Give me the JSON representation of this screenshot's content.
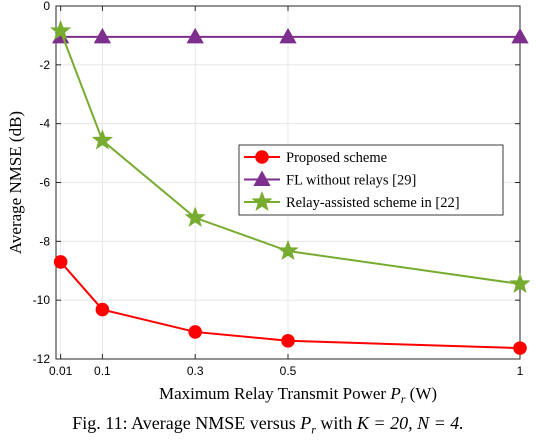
{
  "chart_data": {
    "type": "line",
    "title": "",
    "xlabel": "Maximum Relay Transmit Power P_r (W)",
    "ylabel": "Average NMSE (dB)",
    "x": [
      0.01,
      0.1,
      0.3,
      0.5,
      1
    ],
    "x_tick_labels": [
      "0.01",
      "0.1",
      "0.3",
      "0.5",
      "1"
    ],
    "y_ticks": [
      0,
      -2,
      -4,
      -6,
      -8,
      -10,
      -12
    ],
    "y_tick_labels": [
      "0",
      "-2",
      "-4",
      "-6",
      "-8",
      "-10",
      "-12"
    ],
    "xlim": [
      0,
      1
    ],
    "ylim": [
      -12,
      0
    ],
    "grid": true,
    "legend_position": "center-right",
    "series": [
      {
        "name": "Proposed scheme",
        "color": "#ff0000",
        "marker": "circle",
        "values": [
          -8.7,
          -10.32,
          -11.08,
          -11.38,
          -11.63
        ]
      },
      {
        "name": "FL without relays [29]",
        "color": "#7e2f8e",
        "marker": "triangle",
        "values": [
          -1.05,
          -1.05,
          -1.05,
          -1.05,
          -1.05
        ]
      },
      {
        "name": "Relay-assisted scheme in [22]",
        "color": "#77ac30",
        "marker": "star",
        "values": [
          -0.85,
          -4.57,
          -7.2,
          -8.33,
          -9.45
        ]
      }
    ]
  },
  "caption": {
    "prefix": "Fig. 11: Average NMSE versus",
    "var": "P",
    "sub": "r",
    "middle": "with",
    "cond": "K = 20, N = 4."
  }
}
